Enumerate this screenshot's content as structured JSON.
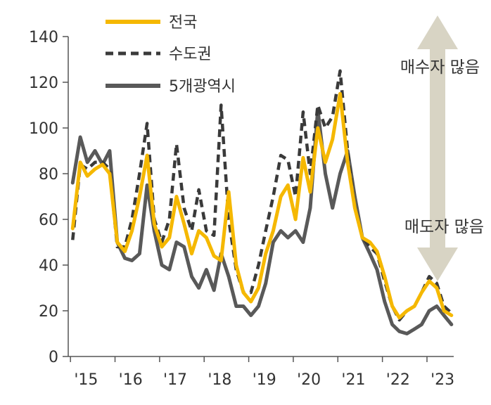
{
  "chart_data": {
    "type": "line",
    "x_categories": [
      "'15",
      "'16",
      "'17",
      "'18",
      "'19",
      "'20",
      "'21",
      "'22",
      "'23"
    ],
    "ylim": [
      0,
      140
    ],
    "y_ticks": [
      0,
      20,
      40,
      60,
      80,
      100,
      120,
      140
    ],
    "grid": false,
    "legend_position": "top-left",
    "annotations": {
      "top": "매수자 많음",
      "bottom": "매도자 많음",
      "arrow_color": "#d8d4c4"
    },
    "series": [
      {
        "name": "전국",
        "color": "#f5b800",
        "style": "solid",
        "x": [
          0,
          0.17,
          0.33,
          0.5,
          0.67,
          0.83,
          1,
          1.17,
          1.33,
          1.5,
          1.67,
          1.83,
          2,
          2.17,
          2.33,
          2.5,
          2.67,
          2.83,
          3,
          3.17,
          3.33,
          3.5,
          3.67,
          3.83,
          4,
          4.17,
          4.33,
          4.5,
          4.67,
          4.83,
          5,
          5.17,
          5.33,
          5.5,
          5.67,
          5.83,
          6,
          6.17,
          6.33,
          6.5,
          6.67,
          6.83,
          7,
          7.17,
          7.33,
          7.5,
          7.67,
          7.83,
          8,
          8.17,
          8.33,
          8.5
        ],
        "y": [
          56,
          85,
          79,
          82,
          84,
          80,
          50,
          46,
          55,
          70,
          88,
          58,
          48,
          52,
          70,
          58,
          45,
          55,
          52,
          44,
          42,
          72,
          40,
          28,
          24,
          30,
          45,
          55,
          70,
          75,
          60,
          87,
          72,
          100,
          85,
          95,
          115,
          85,
          65,
          52,
          50,
          46,
          35,
          22,
          17,
          20,
          22,
          28,
          33,
          30,
          20,
          18
        ]
      },
      {
        "name": "수도권",
        "color": "#3a3a3a",
        "style": "dashed",
        "x": [
          0,
          0.17,
          0.33,
          0.5,
          0.67,
          0.83,
          1,
          1.17,
          1.33,
          1.5,
          1.67,
          1.83,
          2,
          2.17,
          2.33,
          2.5,
          2.67,
          2.83,
          3,
          3.17,
          3.33,
          3.5,
          3.67,
          3.83,
          4,
          4.17,
          4.33,
          4.5,
          4.67,
          4.83,
          5,
          5.17,
          5.33,
          5.5,
          5.67,
          5.83,
          6,
          6.17,
          6.33,
          6.5,
          6.67,
          6.83,
          7,
          7.17,
          7.33,
          7.5,
          7.67,
          7.83,
          8,
          8.17,
          8.33,
          8.5
        ],
        "y": [
          51,
          84,
          82,
          85,
          85,
          82,
          48,
          48,
          60,
          80,
          102,
          60,
          50,
          60,
          93,
          65,
          55,
          73,
          55,
          53,
          110,
          60,
          38,
          28,
          28,
          40,
          55,
          70,
          88,
          86,
          70,
          107,
          80,
          110,
          100,
          105,
          125,
          90,
          65,
          52,
          48,
          45,
          33,
          22,
          16,
          20,
          22,
          28,
          35,
          32,
          22,
          19
        ]
      },
      {
        "name": "5개광역시",
        "color": "#595959",
        "style": "solid",
        "x": [
          0,
          0.17,
          0.33,
          0.5,
          0.67,
          0.83,
          1,
          1.17,
          1.33,
          1.5,
          1.67,
          1.83,
          2,
          2.17,
          2.33,
          2.5,
          2.67,
          2.83,
          3,
          3.17,
          3.33,
          3.5,
          3.67,
          3.83,
          4,
          4.17,
          4.33,
          4.5,
          4.67,
          4.83,
          5,
          5.17,
          5.33,
          5.5,
          5.67,
          5.83,
          6,
          6.17,
          6.33,
          6.5,
          6.67,
          6.83,
          7,
          7.17,
          7.33,
          7.5,
          7.67,
          7.83,
          8,
          8.17,
          8.33,
          8.5
        ],
        "y": [
          76,
          96,
          85,
          90,
          84,
          90,
          50,
          43,
          42,
          45,
          75,
          55,
          40,
          38,
          50,
          48,
          35,
          30,
          38,
          29,
          45,
          35,
          22,
          22,
          18,
          22,
          32,
          50,
          55,
          52,
          55,
          50,
          65,
          108,
          80,
          65,
          80,
          90,
          70,
          52,
          45,
          38,
          24,
          14,
          11,
          10,
          12,
          14,
          20,
          22,
          18,
          14
        ]
      }
    ]
  }
}
